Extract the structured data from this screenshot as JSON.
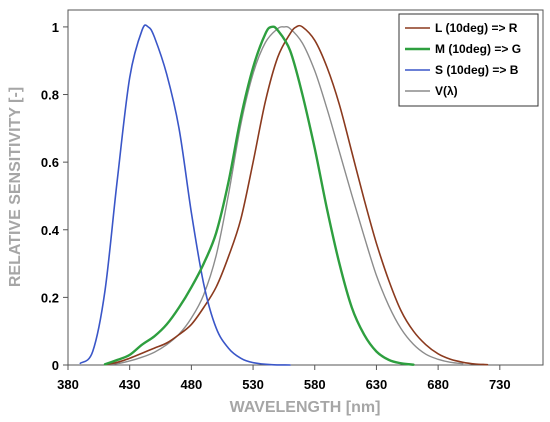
{
  "chart_data": {
    "type": "line",
    "xlabel": "WAVELENGTH [nm]",
    "ylabel": "RELATIVE SENSITIVITY [-]",
    "xlim": [
      380,
      765
    ],
    "ylim": [
      0,
      1.05
    ],
    "xticks": [
      380,
      430,
      480,
      530,
      580,
      630,
      680,
      730
    ],
    "yticks": [
      0,
      0.2,
      0.4,
      0.6,
      0.8,
      1
    ],
    "ytick_labels": [
      "0",
      "0.2",
      "0.4",
      "0.6",
      "0.8",
      "1"
    ],
    "grid": false,
    "legend_position": "top-right",
    "series": [
      {
        "name": "L (10deg) => R",
        "color": "#8b3a1e",
        "x": [
          410,
          420,
          430,
          440,
          450,
          460,
          470,
          480,
          490,
          500,
          510,
          520,
          530,
          540,
          550,
          560,
          565,
          570,
          580,
          590,
          600,
          610,
          620,
          630,
          640,
          650,
          660,
          670,
          680,
          690,
          700,
          710,
          720
        ],
        "y": [
          0.001,
          0.008,
          0.02,
          0.035,
          0.05,
          0.065,
          0.09,
          0.12,
          0.17,
          0.23,
          0.32,
          0.43,
          0.6,
          0.78,
          0.91,
          0.98,
          1.0,
          1.0,
          0.96,
          0.88,
          0.77,
          0.63,
          0.49,
          0.36,
          0.25,
          0.16,
          0.1,
          0.06,
          0.033,
          0.017,
          0.008,
          0.003,
          0.001
        ]
      },
      {
        "name": "M (10deg) => G",
        "color": "#2e9f3f",
        "x": [
          410,
          420,
          430,
          440,
          450,
          460,
          470,
          480,
          490,
          500,
          510,
          520,
          530,
          540,
          545,
          550,
          560,
          570,
          580,
          590,
          600,
          610,
          620,
          630,
          640,
          650,
          660
        ],
        "y": [
          0.002,
          0.015,
          0.03,
          0.06,
          0.085,
          0.12,
          0.17,
          0.23,
          0.3,
          0.39,
          0.54,
          0.73,
          0.88,
          0.98,
          1.0,
          0.99,
          0.93,
          0.8,
          0.64,
          0.46,
          0.3,
          0.17,
          0.09,
          0.04,
          0.015,
          0.005,
          0.001
        ]
      },
      {
        "name": "S (10deg) => B",
        "color": "#3a56c8",
        "x": [
          390,
          400,
          410,
          420,
          430,
          440,
          445,
          450,
          460,
          470,
          480,
          490,
          500,
          510,
          520,
          530,
          545,
          560
        ],
        "y": [
          0.005,
          0.04,
          0.22,
          0.55,
          0.85,
          0.99,
          1.0,
          0.97,
          0.86,
          0.7,
          0.45,
          0.24,
          0.11,
          0.05,
          0.02,
          0.007,
          0.001,
          0.0
        ]
      },
      {
        "name": "V(λ)",
        "color": "#8c8c8c",
        "x": [
          410,
          420,
          430,
          440,
          450,
          460,
          470,
          480,
          490,
          500,
          510,
          520,
          530,
          540,
          550,
          555,
          560,
          570,
          580,
          590,
          600,
          610,
          620,
          630,
          640,
          650,
          660,
          670,
          680,
          690,
          700
        ],
        "y": [
          0.001,
          0.004,
          0.012,
          0.023,
          0.038,
          0.06,
          0.091,
          0.139,
          0.208,
          0.323,
          0.503,
          0.71,
          0.862,
          0.954,
          0.995,
          1.0,
          0.995,
          0.952,
          0.87,
          0.757,
          0.631,
          0.503,
          0.381,
          0.265,
          0.175,
          0.107,
          0.061,
          0.032,
          0.017,
          0.008,
          0.004
        ]
      }
    ]
  }
}
